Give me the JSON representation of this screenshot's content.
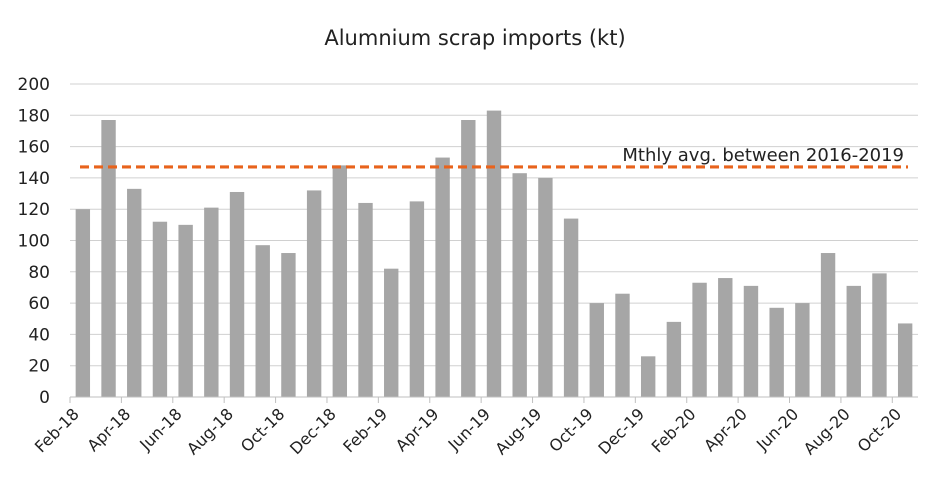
{
  "chart_data": {
    "type": "bar",
    "title": "Alumnium scrap imports (kt)",
    "xlabel": "",
    "ylabel": "",
    "ylim": [
      0,
      200
    ],
    "yticks": [
      0,
      20,
      40,
      60,
      80,
      100,
      120,
      140,
      160,
      180,
      200
    ],
    "grid": true,
    "legend": "none",
    "categories": [
      "Feb-18",
      "Mar-18",
      "Apr-18",
      "May-18",
      "Jun-18",
      "Jul-18",
      "Aug-18",
      "Sep-18",
      "Oct-18",
      "Nov-18",
      "Dec-18",
      "Jan-19",
      "Feb-19",
      "Mar-19",
      "Apr-19",
      "May-19",
      "Jun-19",
      "Jul-19",
      "Aug-19",
      "Sep-19",
      "Oct-19",
      "Nov-19",
      "Dec-19",
      "Jan-20",
      "Feb-20",
      "Mar-20",
      "Apr-20",
      "May-20",
      "Jun-20",
      "Jul-20",
      "Aug-20",
      "Sep-20",
      "Oct-20"
    ],
    "tick_labels": [
      "Feb-18",
      "Apr-18",
      "Jun-18",
      "Aug-18",
      "Oct-18",
      "Dec-18",
      "Feb-19",
      "Apr-19",
      "Jun-19",
      "Aug-19",
      "Oct-19",
      "Dec-19",
      "Feb-20",
      "Apr-20",
      "Jun-20",
      "Aug-20",
      "Oct-20"
    ],
    "values": [
      120,
      177,
      133,
      112,
      110,
      121,
      131,
      97,
      92,
      132,
      148,
      124,
      82,
      125,
      153,
      177,
      183,
      143,
      140,
      114,
      60,
      66,
      26,
      48,
      73,
      76,
      71,
      57,
      60,
      92,
      71,
      79,
      47
    ],
    "bar_color": "#a6a6a6",
    "reference_line": {
      "label": "Mthly avg. between 2016-2019",
      "value": 147,
      "color": "#e8631c"
    }
  }
}
